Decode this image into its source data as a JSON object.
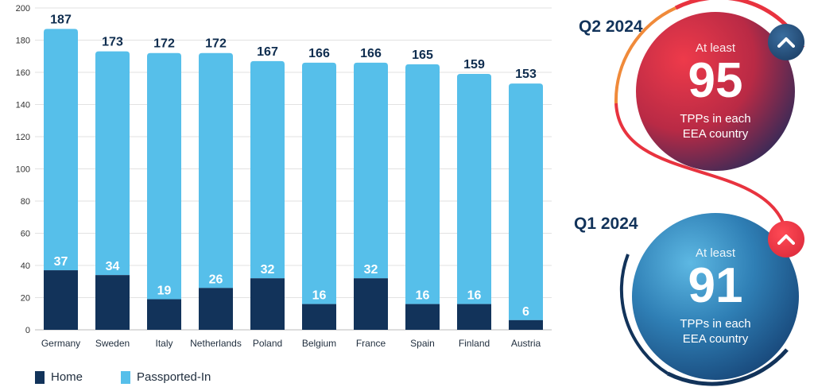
{
  "chart_data": {
    "type": "bar",
    "stacked": true,
    "categories": [
      "Germany",
      "Sweden",
      "Italy",
      "Netherlands",
      "Poland",
      "Belgium",
      "France",
      "Spain",
      "Finland",
      "Austria"
    ],
    "series": [
      {
        "name": "Home",
        "values": [
          37,
          34,
          19,
          26,
          32,
          16,
          32,
          16,
          16,
          6
        ],
        "color": "#12335a"
      },
      {
        "name": "Passported-In",
        "values": [
          150,
          139,
          153,
          146,
          135,
          150,
          134,
          149,
          143,
          147
        ],
        "color": "#56bfea"
      }
    ],
    "totals": [
      187,
      173,
      172,
      172,
      167,
      166,
      166,
      165,
      159,
      153
    ],
    "ylim": [
      0,
      200
    ],
    "yticks": [
      0,
      20,
      40,
      60,
      80,
      100,
      120,
      140,
      160,
      180,
      200
    ],
    "grid": true,
    "legend_position": "bottom-left"
  },
  "q2": {
    "title": "Q2 2024",
    "prefix": "At least",
    "value": "95",
    "line1": "TPPs in each",
    "line2": "EEA country",
    "arrow_icon": "chevron-up-icon"
  },
  "q1": {
    "title": "Q1 2024",
    "prefix": "At least",
    "value": "91",
    "line1": "TPPs in each",
    "line2": "EEA country",
    "arrow_icon": "chevron-up-icon"
  }
}
